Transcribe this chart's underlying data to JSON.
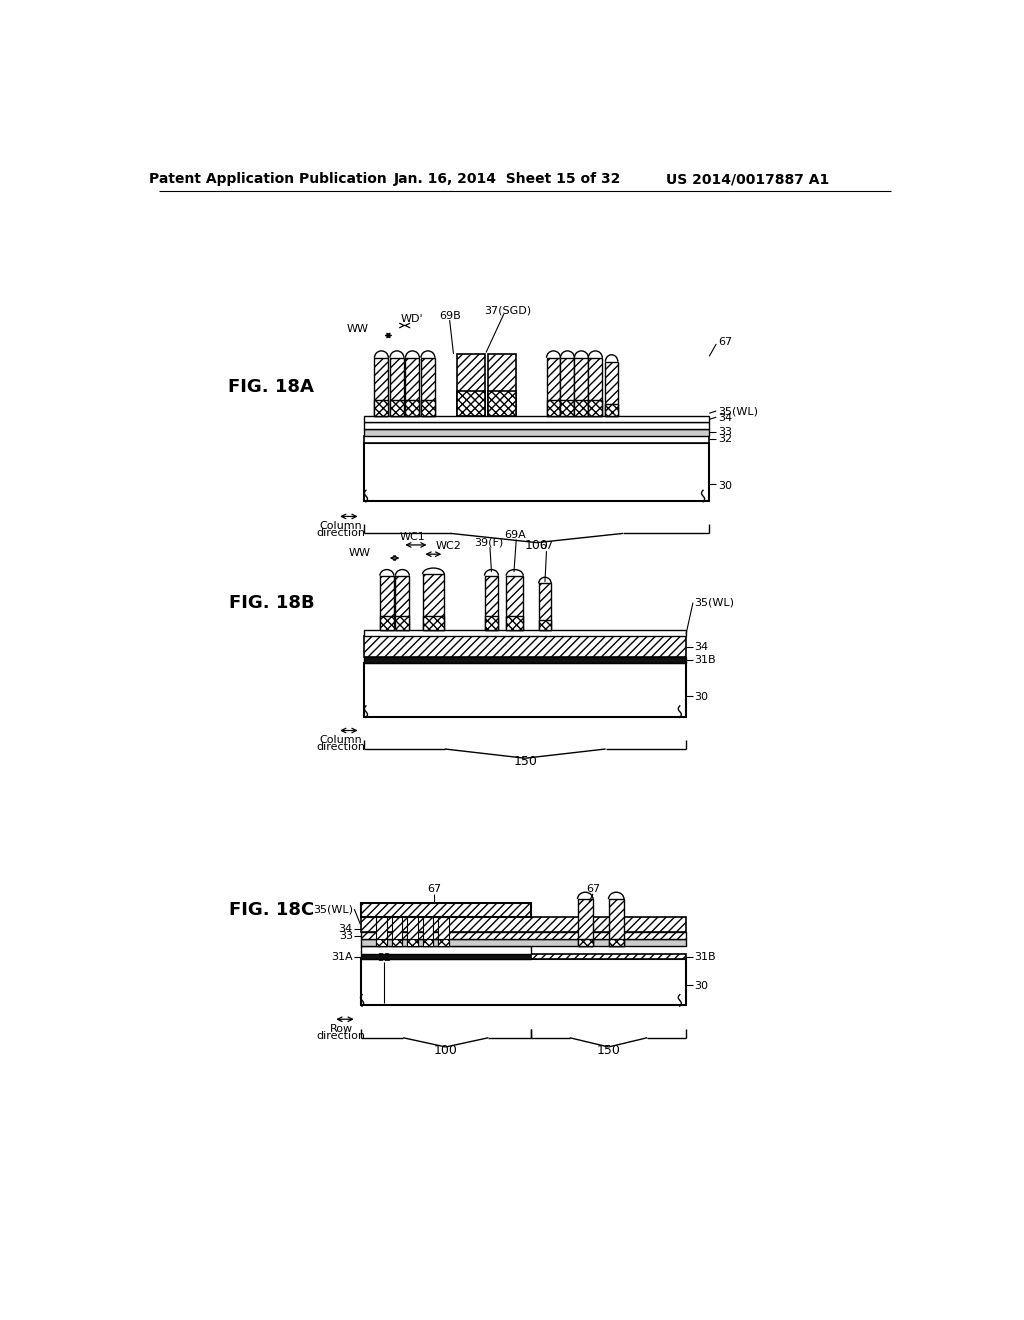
{
  "header_left": "Patent Application Publication",
  "header_mid": "Jan. 16, 2014  Sheet 15 of 32",
  "header_right": "US 2014/0017887 A1",
  "bg_color": "#ffffff",
  "line_color": "#000000"
}
